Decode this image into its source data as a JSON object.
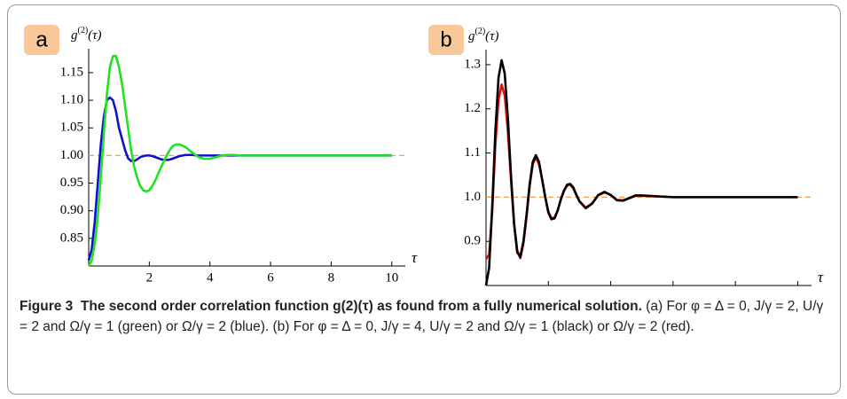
{
  "chart_data": [
    {
      "type": "line",
      "panel_label": "a",
      "y_label": {
        "base": "g",
        "sup": "(2)",
        "arg": "(τ)"
      },
      "x_label": "τ",
      "x": [
        0,
        0.1,
        0.2,
        0.3,
        0.4,
        0.5,
        0.6,
        0.7,
        0.8,
        0.9,
        1.0,
        1.1,
        1.2,
        1.3,
        1.4,
        1.5,
        1.6,
        1.7,
        1.8,
        1.9,
        2.0,
        2.1,
        2.2,
        2.3,
        2.4,
        2.5,
        2.6,
        2.7,
        2.8,
        2.9,
        3.0,
        3.2,
        3.4,
        3.6,
        3.8,
        4.0,
        4.2,
        4.4,
        4.6,
        4.8,
        5.0,
        6,
        7,
        8,
        9,
        10
      ],
      "series": [
        {
          "name": "Ω/γ = 2",
          "color": "#1010d0",
          "values": [
            0.81,
            0.83,
            0.88,
            0.95,
            1.02,
            1.07,
            1.1,
            1.105,
            1.1,
            1.08,
            1.05,
            1.03,
            1.01,
            0.995,
            0.99,
            0.99,
            0.993,
            0.997,
            0.999,
            1.0,
            1.0,
            0.999,
            0.997,
            0.995,
            0.993,
            0.992,
            0.992,
            0.993,
            0.995,
            0.997,
            0.999,
            1.001,
            1.001,
            1.0,
            1.0,
            1.0,
            1.0,
            1.0,
            1.0,
            1.0,
            1.0,
            1.0,
            1.0,
            1.0,
            1.0,
            1.0
          ]
        },
        {
          "name": "Ω/γ = 1",
          "color": "#22e022",
          "values": [
            0.8,
            0.81,
            0.84,
            0.89,
            0.96,
            1.04,
            1.11,
            1.16,
            1.18,
            1.18,
            1.16,
            1.13,
            1.09,
            1.05,
            1.01,
            0.98,
            0.96,
            0.945,
            0.937,
            0.935,
            0.937,
            0.945,
            0.955,
            0.968,
            0.98,
            0.992,
            1.003,
            1.012,
            1.018,
            1.02,
            1.02,
            1.015,
            1.006,
            0.998,
            0.994,
            0.994,
            0.997,
            1.0,
            1.001,
            1.001,
            1.0,
            1.0,
            1.0,
            1.0,
            1.0,
            1.0
          ]
        }
      ],
      "xlim": [
        0,
        10.3
      ],
      "ylim": [
        0.8,
        1.19
      ],
      "xticks": [
        2,
        4,
        6,
        8,
        10
      ],
      "yticks": [
        {
          "value": 0.85,
          "label": "0.85"
        },
        {
          "value": 0.9,
          "label": "0.90"
        },
        {
          "value": 0.95,
          "label": "0.95"
        },
        {
          "value": 1.0,
          "label": "1.00"
        },
        {
          "value": 1.05,
          "label": "1.05"
        },
        {
          "value": 1.1,
          "label": "1.10"
        },
        {
          "value": 1.15,
          "label": "1.15"
        }
      ],
      "reference_line": {
        "value": 1,
        "color": "#f0a050"
      }
    },
    {
      "type": "line",
      "panel_label": "b",
      "y_label": {
        "base": "g",
        "sup": "(2)",
        "arg": "(τ)"
      },
      "x_label": "τ",
      "x": [
        0,
        0.1,
        0.2,
        0.3,
        0.4,
        0.5,
        0.6,
        0.7,
        0.8,
        0.9,
        1.0,
        1.1,
        1.2,
        1.3,
        1.4,
        1.5,
        1.6,
        1.7,
        1.8,
        1.9,
        2.0,
        2.1,
        2.2,
        2.3,
        2.4,
        2.5,
        2.6,
        2.7,
        2.8,
        2.9,
        3.0,
        3.2,
        3.4,
        3.6,
        3.8,
        4.0,
        4.2,
        4.4,
        4.6,
        4.8,
        5.0,
        6,
        7,
        8,
        9,
        10
      ],
      "series": [
        {
          "name": "Ω/γ = 2",
          "color": "#e01010",
          "values": [
            0.86,
            0.87,
            0.97,
            1.12,
            1.22,
            1.255,
            1.23,
            1.15,
            1.04,
            0.94,
            0.88,
            0.862,
            0.895,
            0.955,
            1.025,
            1.075,
            1.09,
            1.075,
            1.04,
            1.0,
            0.967,
            0.952,
            0.954,
            0.97,
            0.995,
            1.014,
            1.026,
            1.028,
            1.02,
            1.005,
            0.991,
            0.976,
            0.986,
            1.004,
            1.011,
            1.005,
            0.994,
            0.993,
            0.998,
            1.003,
            1.003,
            1.0,
            1.0,
            1.0,
            1.0,
            1.0
          ]
        },
        {
          "name": "Ω/γ = 1",
          "color": "#000000",
          "values": [
            0.8,
            0.84,
            0.98,
            1.15,
            1.27,
            1.31,
            1.28,
            1.18,
            1.05,
            0.94,
            0.875,
            0.865,
            0.9,
            0.96,
            1.03,
            1.08,
            1.095,
            1.08,
            1.04,
            1.0,
            0.965,
            0.95,
            0.952,
            0.97,
            0.995,
            1.015,
            1.028,
            1.03,
            1.022,
            1.005,
            0.99,
            0.975,
            0.985,
            1.005,
            1.012,
            1.005,
            0.993,
            0.992,
            0.998,
            1.004,
            1.004,
            1.0,
            1.0,
            1.0,
            1.0,
            1.0
          ]
        }
      ],
      "xlim": [
        0,
        10.3
      ],
      "ylim": [
        0.8,
        1.33
      ],
      "xticks": [
        2,
        4,
        6,
        8,
        10
      ],
      "yticks": [
        0.9,
        {
          "value": 1.0,
          "label": "1.0"
        },
        1.1,
        1.2,
        1.3
      ],
      "reference_line": {
        "value": 1,
        "color": "#f0a050"
      }
    }
  ],
  "caption": {
    "label": "Figure 3",
    "title": "The second order correlation function g(2)(τ) as found from a fully numerical solution.",
    "text": "(a) For φ = Δ = 0, J/γ = 2, U/γ = 2 and Ω/γ = 1 (green) or Ω/γ = 2 (blue). (b) For φ = Δ = 0, J/γ = 4, U/γ = 2 and Ω/γ = 1 (black) or Ω/γ = 2 (red)."
  }
}
